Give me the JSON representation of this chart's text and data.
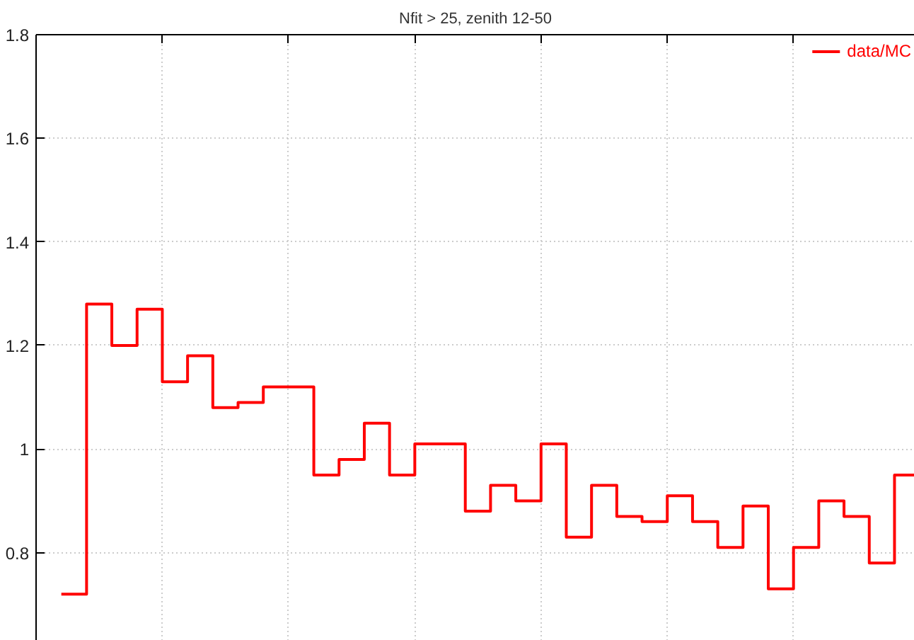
{
  "chart_data": {
    "type": "step",
    "title": "Nfit > 25, zenith 12-50",
    "categories": [
      null,
      null,
      null,
      null,
      null,
      null,
      null,
      null,
      null,
      null,
      null,
      null,
      null,
      null,
      null,
      null,
      null,
      null,
      null,
      null,
      null,
      null,
      null,
      null,
      null,
      null,
      null,
      null,
      null,
      null,
      null,
      null,
      null,
      null,
      null
    ],
    "series": [
      {
        "name": "data/MC",
        "color": "#ff0000",
        "values": [
          null,
          0.72,
          1.28,
          1.2,
          1.27,
          1.13,
          1.18,
          1.08,
          1.09,
          1.12,
          1.12,
          0.95,
          0.98,
          1.05,
          0.95,
          1.01,
          1.01,
          0.88,
          0.93,
          0.9,
          1.01,
          0.83,
          0.93,
          0.87,
          0.86,
          0.91,
          0.86,
          0.81,
          0.89,
          0.73,
          0.81,
          0.9,
          0.87,
          0.78,
          0.95
        ]
      }
    ],
    "ylim": [
      0.63,
      1.8
    ],
    "yticks": [
      0.8,
      1,
      1.2,
      1.4,
      1.6,
      1.8
    ],
    "grid": true,
    "legend": "top right",
    "tick_labels": "y"
  }
}
